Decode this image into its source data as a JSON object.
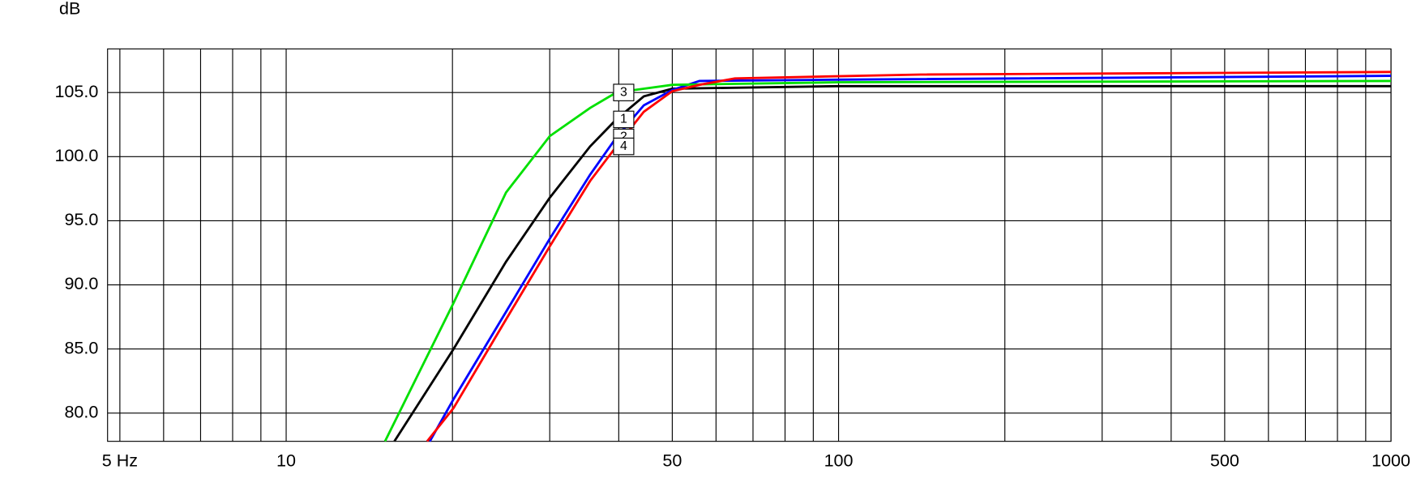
{
  "chart_data": {
    "type": "line",
    "y_label": "dB",
    "x_scale": "log",
    "grid": true,
    "xlim": [
      4.75,
      1000
    ],
    "ylim": [
      77.8,
      108.4
    ],
    "xticks": [
      {
        "value": 5,
        "label": "5 Hz"
      },
      10,
      50,
      100,
      500,
      1000
    ],
    "x_grid": [
      6,
      7,
      8,
      9,
      20,
      30,
      40,
      60,
      70,
      80,
      90,
      200,
      300,
      400,
      600,
      700,
      800,
      900
    ],
    "yticks": [
      {
        "value": 80,
        "label": "80.0"
      },
      {
        "value": 85,
        "label": "85.0"
      },
      {
        "value": 90,
        "label": "90.0"
      },
      {
        "value": 95,
        "label": "95.0"
      },
      {
        "value": 100,
        "label": "100.0"
      },
      {
        "value": 105,
        "label": "105.0"
      }
    ],
    "series": [
      {
        "name": "1",
        "color": "#000000",
        "x": [
          15.7,
          20.1,
          25,
          30,
          35.5,
          39.6,
          44.4,
          50,
          100,
          1000
        ],
        "values": [
          77.8,
          85.0,
          91.8,
          96.8,
          100.8,
          102.9,
          104.7,
          105.3,
          105.5,
          105.5
        ]
      },
      {
        "name": "2",
        "color": "#0000ff",
        "x": [
          18.2,
          20.1,
          25,
          30,
          35.5,
          39.6,
          44.4,
          50,
          56,
          100,
          1000
        ],
        "values": [
          77.8,
          81.1,
          87.9,
          93.6,
          98.6,
          101.5,
          104.0,
          105.2,
          105.9,
          106.0,
          106.3
        ]
      },
      {
        "name": "3",
        "color": "#00e000",
        "x": [
          15.1,
          20.1,
          25,
          30,
          35.5,
          39.6,
          50,
          100,
          1000
        ],
        "values": [
          77.8,
          88.6,
          97.2,
          101.6,
          103.8,
          105.0,
          105.6,
          105.8,
          105.9
        ]
      },
      {
        "name": "4",
        "color": "#ff0000",
        "x": [
          18.0,
          20.1,
          25,
          30,
          35.5,
          39.6,
          44.4,
          50,
          56,
          64.9,
          140.8,
          1000
        ],
        "values": [
          77.8,
          80.4,
          87.3,
          93.0,
          98.1,
          100.8,
          103.5,
          105.1,
          105.6,
          106.1,
          106.4,
          106.6
        ]
      }
    ]
  }
}
